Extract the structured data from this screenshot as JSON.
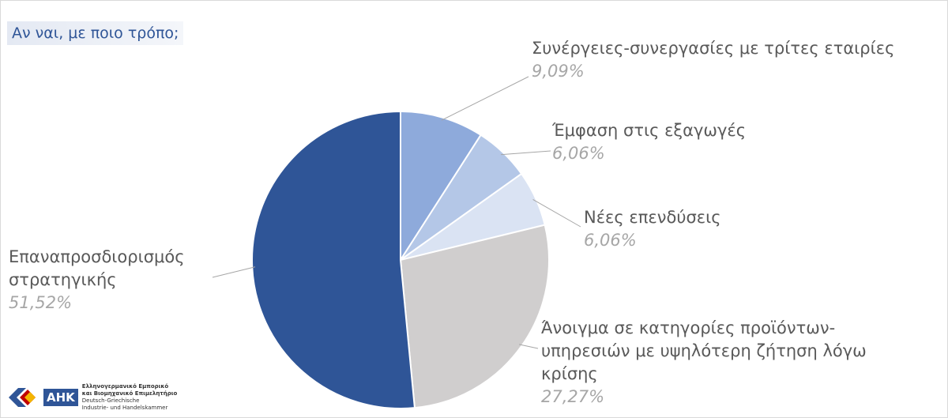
{
  "chart_data": {
    "type": "pie",
    "title": "Αν ναι, με ποιο τρόπο;",
    "categories": [
      "Συνέργειες-συνεργασίες με τρίτες εταιρίες",
      "Έμφαση στις εξαγωγές",
      "Νέες επενδύσεις",
      "Άνοιγμα σε κατηγορίες προϊόντων-υπηρεσιών με υψηλότερη ζήτηση λόγω κρίσης",
      "Επαναπροσδιορισμός στρατηγικής"
    ],
    "values": [
      9.09,
      6.06,
      6.06,
      27.27,
      51.52
    ],
    "value_labels": [
      "9,09%",
      "6,06%",
      "6,06%",
      "27,27%",
      "51,52%"
    ],
    "colors": [
      "#8eaadb",
      "#b4c7e7",
      "#dae3f3",
      "#d0cece",
      "#2f5597"
    ],
    "annotations": [
      "AHK",
      "Ελληνογερμανικό Εμπορικό",
      "και Βιομηχανικό Επιμελητήριο",
      "Deutsch-Griechische",
      "Industrie- und Handelskammer"
    ]
  }
}
